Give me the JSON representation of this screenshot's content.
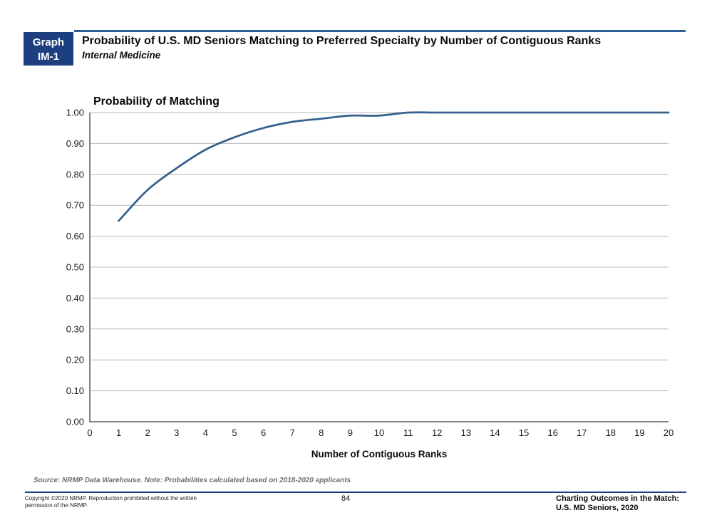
{
  "header": {
    "badge_line1": "Graph",
    "badge_line2": "IM-1",
    "title": "Probability of U.S. MD Seniors Matching to Preferred Specialty by Number of Contiguous Ranks",
    "subtitle": "Internal Medicine"
  },
  "chart_data": {
    "type": "line",
    "title": "Probability of Matching",
    "xlabel": "Number of Contiguous Ranks",
    "ylabel": "",
    "x": [
      1,
      2,
      3,
      4,
      5,
      6,
      7,
      8,
      9,
      10,
      11,
      12,
      13,
      14,
      15,
      16,
      17,
      18,
      19,
      20
    ],
    "values": [
      0.65,
      0.75,
      0.82,
      0.88,
      0.92,
      0.95,
      0.97,
      0.98,
      0.99,
      0.99,
      1.0,
      1.0,
      1.0,
      1.0,
      1.0,
      1.0,
      1.0,
      1.0,
      1.0,
      1.0
    ],
    "xlim": [
      0,
      20
    ],
    "ylim": [
      0.0,
      1.0
    ],
    "ytick_step": 0.1,
    "xtick_step": 1,
    "grid": "horizontal",
    "legend_position": "none",
    "line_color": "#35618f",
    "grid_color": "#b8b8b8",
    "axis_color": "#808080"
  },
  "source_note": "Source: NRMP Data Warehouse. Note: Probabilities calculated based on 2018-2020 applicants",
  "footer": {
    "copyright": "Copyright ©2020 NRMP. Reproduction prohibited without the written permission of the NRMP.",
    "page_number": "84",
    "publication_line1": "Charting Outcomes in the Match:",
    "publication_line2": "U.S. MD Seniors, 2020"
  }
}
